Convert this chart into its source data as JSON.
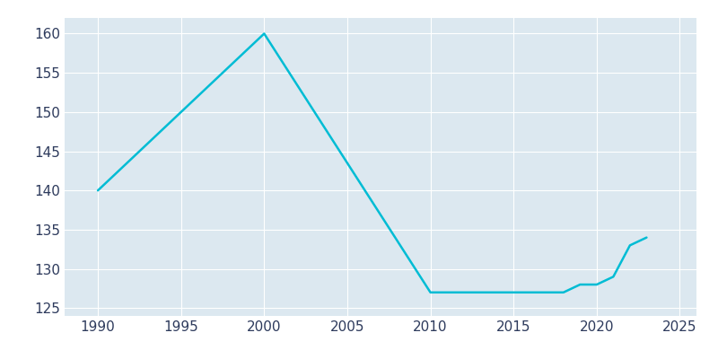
{
  "x": [
    1990,
    2000,
    2010,
    2011,
    2012,
    2013,
    2014,
    2015,
    2016,
    2017,
    2018,
    2019,
    2020,
    2021,
    2022,
    2023
  ],
  "y": [
    140,
    160,
    127,
    127,
    127,
    127,
    127,
    127,
    127,
    127,
    127,
    128,
    128,
    129,
    133,
    134
  ],
  "line_color": "#00bcd4",
  "background_color": "#ffffff",
  "axes_facecolor": "#dce8f0",
  "grid_color": "#ffffff",
  "text_color": "#2d3a5c",
  "xlim": [
    1988,
    2026
  ],
  "ylim": [
    124,
    162
  ],
  "xticks": [
    1990,
    1995,
    2000,
    2005,
    2010,
    2015,
    2020,
    2025
  ],
  "yticks": [
    125,
    130,
    135,
    140,
    145,
    150,
    155,
    160
  ],
  "linewidth": 1.8,
  "figsize": [
    8.0,
    4.0
  ],
  "dpi": 100
}
